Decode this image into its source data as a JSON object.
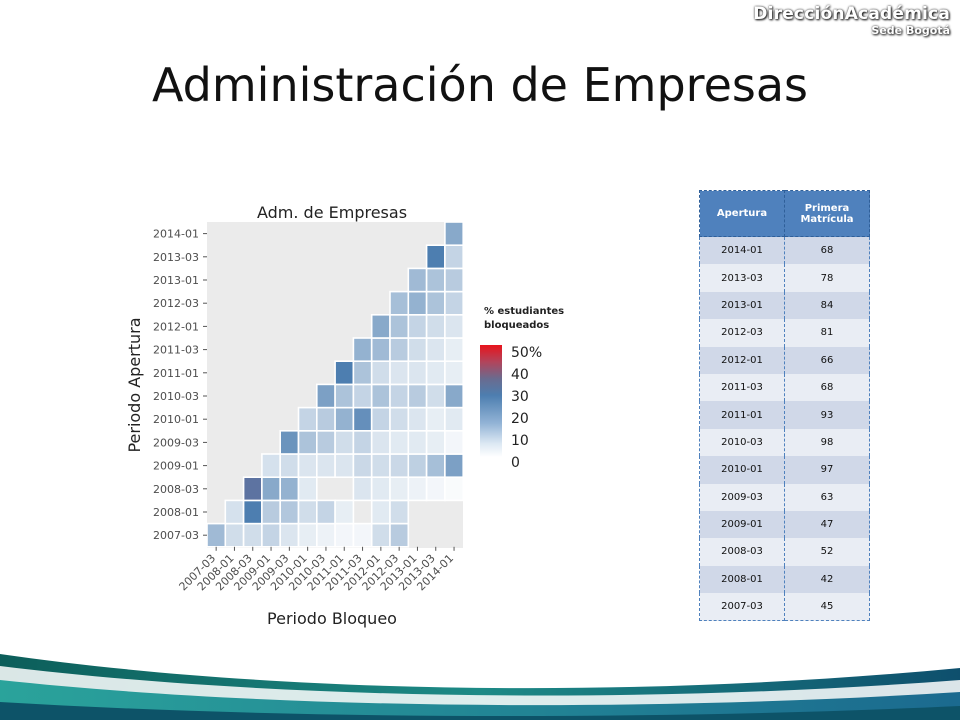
{
  "header": {
    "brand_main": "DirecciónAcadémica",
    "brand_sub": "Sede Bogotá"
  },
  "slide_title": "Administración de Empresas",
  "colors": {
    "table_header": "#4f81bd",
    "row_odd": "#d0d8e8",
    "row_even": "#e9edf4",
    "low": "#ffffff",
    "mid": "#4d7eb0",
    "high": "#e8141c"
  },
  "chart_data": {
    "type": "heatmap",
    "title": "Adm. de Empresas",
    "xlabel": "Periodo Bloqueo",
    "ylabel": "Periodo Apertura",
    "x": [
      "2007-03",
      "2008-01",
      "2008-03",
      "2009-01",
      "2009-03",
      "2010-01",
      "2010-03",
      "2011-01",
      "2011-03",
      "2012-01",
      "2012-03",
      "2013-01",
      "2013-03",
      "2014-01"
    ],
    "y": [
      "2007-03",
      "2008-01",
      "2008-03",
      "2009-01",
      "2009-03",
      "2010-01",
      "2010-03",
      "2011-01",
      "2011-03",
      "2012-01",
      "2012-03",
      "2013-01",
      "2013-03",
      "2014-01"
    ],
    "values": [
      [
        16,
        8,
        8,
        10,
        6,
        4,
        3,
        2,
        2,
        8,
        12,
        null,
        null,
        null
      ],
      [
        null,
        7,
        30,
        12,
        13,
        8,
        10,
        4,
        null,
        5,
        8,
        null,
        null,
        null
      ],
      [
        null,
        null,
        32,
        20,
        18,
        5,
        null,
        null,
        6,
        5,
        4,
        3,
        2,
        1
      ],
      [
        null,
        null,
        null,
        7,
        8,
        6,
        6,
        6,
        9,
        8,
        9,
        11,
        15,
        22
      ],
      [
        null,
        null,
        null,
        null,
        25,
        14,
        12,
        8,
        10,
        6,
        5,
        5,
        4,
        2
      ],
      [
        null,
        null,
        null,
        null,
        null,
        10,
        12,
        18,
        26,
        10,
        8,
        6,
        4,
        5
      ],
      [
        null,
        null,
        null,
        null,
        null,
        null,
        22,
        14,
        10,
        14,
        10,
        12,
        8,
        20
      ],
      [
        null,
        null,
        null,
        null,
        null,
        null,
        null,
        30,
        14,
        8,
        6,
        6,
        5,
        4
      ],
      [
        null,
        null,
        null,
        null,
        null,
        null,
        null,
        null,
        18,
        16,
        12,
        8,
        6,
        4
      ],
      [
        null,
        null,
        null,
        null,
        null,
        null,
        null,
        null,
        null,
        20,
        14,
        10,
        8,
        6
      ],
      [
        null,
        null,
        null,
        null,
        null,
        null,
        null,
        null,
        null,
        null,
        15,
        18,
        14,
        10
      ],
      [
        null,
        null,
        null,
        null,
        null,
        null,
        null,
        null,
        null,
        null,
        null,
        16,
        14,
        12
      ],
      [
        null,
        null,
        null,
        null,
        null,
        null,
        null,
        null,
        null,
        null,
        null,
        null,
        30,
        10
      ],
      [
        null,
        null,
        null,
        null,
        null,
        null,
        null,
        null,
        null,
        null,
        null,
        null,
        null,
        20
      ]
    ],
    "legend_title": "% estudiantes bloqueados",
    "legend_ticks": [
      "50%",
      "40",
      "30",
      "20",
      "10",
      "0"
    ],
    "value_range": [
      0,
      50
    ],
    "grid": true
  },
  "table": {
    "headers": [
      "Apertura",
      "Primera Matrícula"
    ],
    "rows": [
      [
        "2014-01",
        "68"
      ],
      [
        "2013-03",
        "78"
      ],
      [
        "2013-01",
        "84"
      ],
      [
        "2012-03",
        "81"
      ],
      [
        "2012-01",
        "66"
      ],
      [
        "2011-03",
        "68"
      ],
      [
        "2011-01",
        "93"
      ],
      [
        "2010-03",
        "98"
      ],
      [
        "2010-01",
        "97"
      ],
      [
        "2009-03",
        "63"
      ],
      [
        "2009-01",
        "47"
      ],
      [
        "2008-03",
        "52"
      ],
      [
        "2008-01",
        "42"
      ],
      [
        "2007-03",
        "45"
      ]
    ]
  }
}
